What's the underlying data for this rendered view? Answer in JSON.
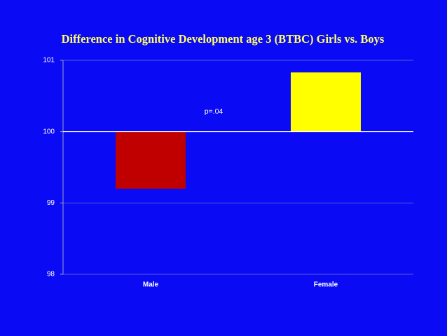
{
  "chart_data": {
    "type": "bar",
    "title": "Difference in Cognitive Development age 3 (BTBC) Girls vs. Boys",
    "annotation": "p=.04",
    "categories": [
      "Male",
      "Female"
    ],
    "values": [
      99.2,
      100.83
    ],
    "colors": [
      "#c00000",
      "#ffff00"
    ],
    "ylim": [
      98,
      101
    ],
    "yticks": [
      98,
      99,
      100,
      101
    ],
    "x_axis_crosses": 100,
    "grid": true
  }
}
